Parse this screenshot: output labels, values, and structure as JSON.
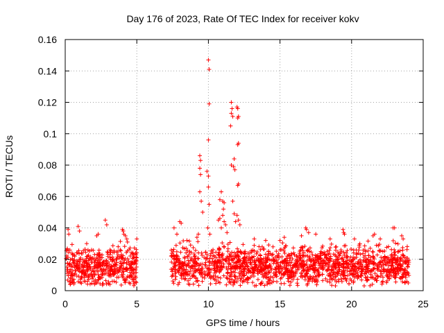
{
  "chart_data": {
    "type": "scatter",
    "title": "Day 176 of 2023, Rate Of TEC Index for receiver kokv",
    "xlabel": "GPS time / hours",
    "ylabel": "ROTI / TECUs",
    "xlim": [
      0,
      25
    ],
    "ylim": [
      0,
      0.16
    ],
    "grid": true,
    "marker": "+",
    "color": "#ff0000",
    "x_ticks": [
      0,
      5,
      10,
      15,
      20,
      25
    ],
    "x_tick_labels": [
      "0",
      "5",
      "10",
      "15",
      "20",
      "25"
    ],
    "y_ticks": [
      0,
      0.02,
      0.04,
      0.06,
      0.08,
      0.1,
      0.12,
      0.14,
      0.16
    ],
    "y_tick_labels": [
      "0",
      "0.02",
      "0.04",
      "0.06",
      "0.08",
      "0.1",
      "0.12",
      "0.14",
      "0.16"
    ],
    "series": [
      {
        "name": "ROTI",
        "note": "dense scatter sampled from the figure",
        "segments": [
          {
            "x_start": 0.05,
            "x_end": 5.0,
            "baseline": 0.015,
            "spread": 0.012,
            "count": 480
          },
          {
            "x_start": 7.4,
            "x_end": 24.0,
            "baseline": 0.016,
            "spread": 0.012,
            "count": 1600
          }
        ],
        "points": [
          [
            0.2,
            0.039
          ],
          [
            0.25,
            0.036
          ],
          [
            0.9,
            0.041
          ],
          [
            1.0,
            0.038
          ],
          [
            1.5,
            0.03
          ],
          [
            2.2,
            0.035
          ],
          [
            2.3,
            0.036
          ],
          [
            2.8,
            0.045
          ],
          [
            2.9,
            0.042
          ],
          [
            4.0,
            0.039
          ],
          [
            4.05,
            0.038
          ],
          [
            4.1,
            0.036
          ],
          [
            4.2,
            0.035
          ],
          [
            4.3,
            0.033
          ],
          [
            4.35,
            0.031
          ],
          [
            5.0,
            0.033
          ],
          [
            7.6,
            0.04
          ],
          [
            7.8,
            0.036
          ],
          [
            8.0,
            0.044
          ],
          [
            8.1,
            0.043
          ],
          [
            8.5,
            0.032
          ],
          [
            9.2,
            0.034
          ],
          [
            9.3,
            0.036
          ],
          [
            9.4,
            0.086
          ],
          [
            9.45,
            0.083
          ],
          [
            9.4,
            0.078
          ],
          [
            9.45,
            0.074
          ],
          [
            9.4,
            0.063
          ],
          [
            9.5,
            0.057
          ],
          [
            9.6,
            0.05
          ],
          [
            10.0,
            0.147
          ],
          [
            10.05,
            0.141
          ],
          [
            10.05,
            0.119
          ],
          [
            10.0,
            0.096
          ],
          [
            9.9,
            0.076
          ],
          [
            10.0,
            0.073
          ],
          [
            10.0,
            0.066
          ],
          [
            10.05,
            0.055
          ],
          [
            9.95,
            0.04
          ],
          [
            10.1,
            0.036
          ],
          [
            10.9,
            0.063
          ],
          [
            10.8,
            0.058
          ],
          [
            11.0,
            0.057
          ],
          [
            11.1,
            0.056
          ],
          [
            11.05,
            0.052
          ],
          [
            10.7,
            0.045
          ],
          [
            10.8,
            0.046
          ],
          [
            11.0,
            0.048
          ],
          [
            11.1,
            0.044
          ],
          [
            10.9,
            0.04
          ],
          [
            11.2,
            0.042
          ],
          [
            11.3,
            0.037
          ],
          [
            11.6,
            0.12
          ],
          [
            11.65,
            0.116
          ],
          [
            11.6,
            0.113
          ],
          [
            11.7,
            0.111
          ],
          [
            11.55,
            0.105
          ],
          [
            11.6,
            0.08
          ],
          [
            11.8,
            0.084
          ],
          [
            11.75,
            0.079
          ],
          [
            11.85,
            0.077
          ],
          [
            11.7,
            0.057
          ],
          [
            11.8,
            0.049
          ],
          [
            11.9,
            0.044
          ],
          [
            12.0,
            0.117
          ],
          [
            12.05,
            0.116
          ],
          [
            12.1,
            0.111
          ],
          [
            12.05,
            0.11
          ],
          [
            12.1,
            0.094
          ],
          [
            12.05,
            0.093
          ],
          [
            12.1,
            0.068
          ],
          [
            12.05,
            0.067
          ],
          [
            12.0,
            0.048
          ],
          [
            12.1,
            0.045
          ],
          [
            12.2,
            0.042
          ],
          [
            13.2,
            0.033
          ],
          [
            14.0,
            0.032
          ],
          [
            15.0,
            0.032
          ],
          [
            15.3,
            0.034
          ],
          [
            16.5,
            0.035
          ],
          [
            16.8,
            0.04
          ],
          [
            16.85,
            0.039
          ],
          [
            17.0,
            0.037
          ],
          [
            17.5,
            0.036
          ],
          [
            18.5,
            0.033
          ],
          [
            19.4,
            0.039
          ],
          [
            19.45,
            0.037
          ],
          [
            19.5,
            0.036
          ],
          [
            20.2,
            0.033
          ],
          [
            21.5,
            0.035
          ],
          [
            21.6,
            0.036
          ],
          [
            22.0,
            0.033
          ],
          [
            22.9,
            0.04
          ],
          [
            23.0,
            0.04
          ],
          [
            23.5,
            0.035
          ],
          [
            23.6,
            0.033
          ]
        ]
      }
    ]
  }
}
